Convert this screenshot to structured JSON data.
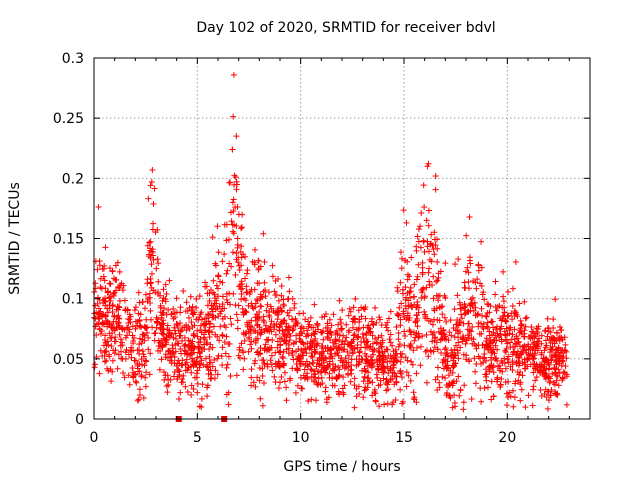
{
  "chart_data": {
    "type": "scatter",
    "title": "Day 102 of 2020, SRMTID for receiver bdvl",
    "xlabel": "GPS time / hours",
    "ylabel": "SRMTID / TECUs",
    "xlim": [
      0,
      24
    ],
    "ylim": [
      0,
      0.3
    ],
    "xticks": [
      0,
      5,
      10,
      15,
      20
    ],
    "xtick_labels": [
      "0",
      "5",
      "10",
      "15",
      "20"
    ],
    "yticks": [
      0,
      0.05,
      0.1,
      0.15,
      0.2,
      0.25,
      0.3
    ],
    "ytick_labels": [
      "0",
      "0.05",
      "0.1",
      "0.15",
      "0.2",
      "0.25",
      "0.3"
    ],
    "grid": true,
    "marker": "+",
    "series_color": "#ff0000",
    "x_range_of_data": [
      0,
      22.9
    ],
    "envelope": [
      [
        0.0,
        0.085,
        0.02
      ],
      [
        0.2,
        0.1,
        0.03
      ],
      [
        0.5,
        0.08,
        0.025
      ],
      [
        1.0,
        0.09,
        0.025
      ],
      [
        1.5,
        0.07,
        0.02
      ],
      [
        2.0,
        0.06,
        0.02
      ],
      [
        2.5,
        0.065,
        0.02
      ],
      [
        2.8,
        0.13,
        0.045
      ],
      [
        3.2,
        0.07,
        0.02
      ],
      [
        4.0,
        0.06,
        0.018
      ],
      [
        5.0,
        0.06,
        0.02
      ],
      [
        5.5,
        0.07,
        0.025
      ],
      [
        6.0,
        0.1,
        0.04
      ],
      [
        6.5,
        0.09,
        0.04
      ],
      [
        6.8,
        0.17,
        0.06
      ],
      [
        7.3,
        0.09,
        0.03
      ],
      [
        8.0,
        0.08,
        0.025
      ],
      [
        9.0,
        0.075,
        0.025
      ],
      [
        10.0,
        0.06,
        0.02
      ],
      [
        11.0,
        0.05,
        0.015
      ],
      [
        12.0,
        0.055,
        0.018
      ],
      [
        13.0,
        0.06,
        0.02
      ],
      [
        14.0,
        0.05,
        0.018
      ],
      [
        14.6,
        0.045,
        0.015
      ],
      [
        15.0,
        0.1,
        0.04
      ],
      [
        15.5,
        0.075,
        0.025
      ],
      [
        16.2,
        0.13,
        0.05
      ],
      [
        16.7,
        0.08,
        0.03
      ],
      [
        17.2,
        0.04,
        0.02
      ],
      [
        17.6,
        0.07,
        0.03
      ],
      [
        18.2,
        0.09,
        0.035
      ],
      [
        19.0,
        0.06,
        0.025
      ],
      [
        20.0,
        0.065,
        0.025
      ],
      [
        21.0,
        0.055,
        0.02
      ],
      [
        22.0,
        0.05,
        0.018
      ],
      [
        22.9,
        0.05,
        0.015
      ]
    ],
    "zero_markers_x": [
      4.1,
      6.3
    ]
  }
}
